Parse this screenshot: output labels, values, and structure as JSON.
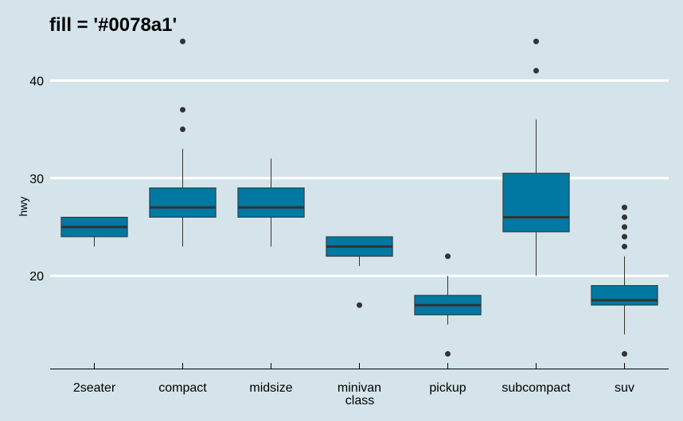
{
  "chart_data": {
    "type": "boxplot",
    "title": "fill = '#0078a1'",
    "xlabel": "class",
    "ylabel": "hwy",
    "ylim": [
      10.5,
      44.5
    ],
    "yticks": [
      20,
      30,
      40
    ],
    "grid": "horizontal major lines",
    "fill_color": "#0078a1",
    "categories": [
      "2seater",
      "compact",
      "midsize",
      "minivan",
      "pickup",
      "subcompact",
      "suv"
    ],
    "boxes": [
      {
        "category": "2seater",
        "whisker_low": 23,
        "q1": 24,
        "median": 25,
        "q3": 26,
        "whisker_high": 26,
        "outliers": []
      },
      {
        "category": "compact",
        "whisker_low": 23,
        "q1": 26,
        "median": 27,
        "q3": 29,
        "whisker_high": 33,
        "outliers": [
          35,
          37,
          44
        ]
      },
      {
        "category": "midsize",
        "whisker_low": 23,
        "q1": 26,
        "median": 27,
        "q3": 29,
        "whisker_high": 32,
        "outliers": []
      },
      {
        "category": "minivan",
        "whisker_low": 21,
        "q1": 22,
        "median": 23,
        "q3": 24,
        "whisker_high": 24,
        "outliers": [
          17
        ]
      },
      {
        "category": "pickup",
        "whisker_low": 15,
        "q1": 16,
        "median": 17,
        "q3": 18,
        "whisker_high": 20,
        "outliers": [
          12,
          22
        ]
      },
      {
        "category": "subcompact",
        "whisker_low": 20,
        "q1": 24.5,
        "median": 26,
        "q3": 30.5,
        "whisker_high": 36,
        "outliers": [
          41,
          44
        ]
      },
      {
        "category": "suv",
        "whisker_low": 14,
        "q1": 17,
        "median": 17.5,
        "q3": 19,
        "whisker_high": 22,
        "outliers": [
          12,
          23,
          24,
          25,
          26,
          27
        ]
      }
    ]
  }
}
